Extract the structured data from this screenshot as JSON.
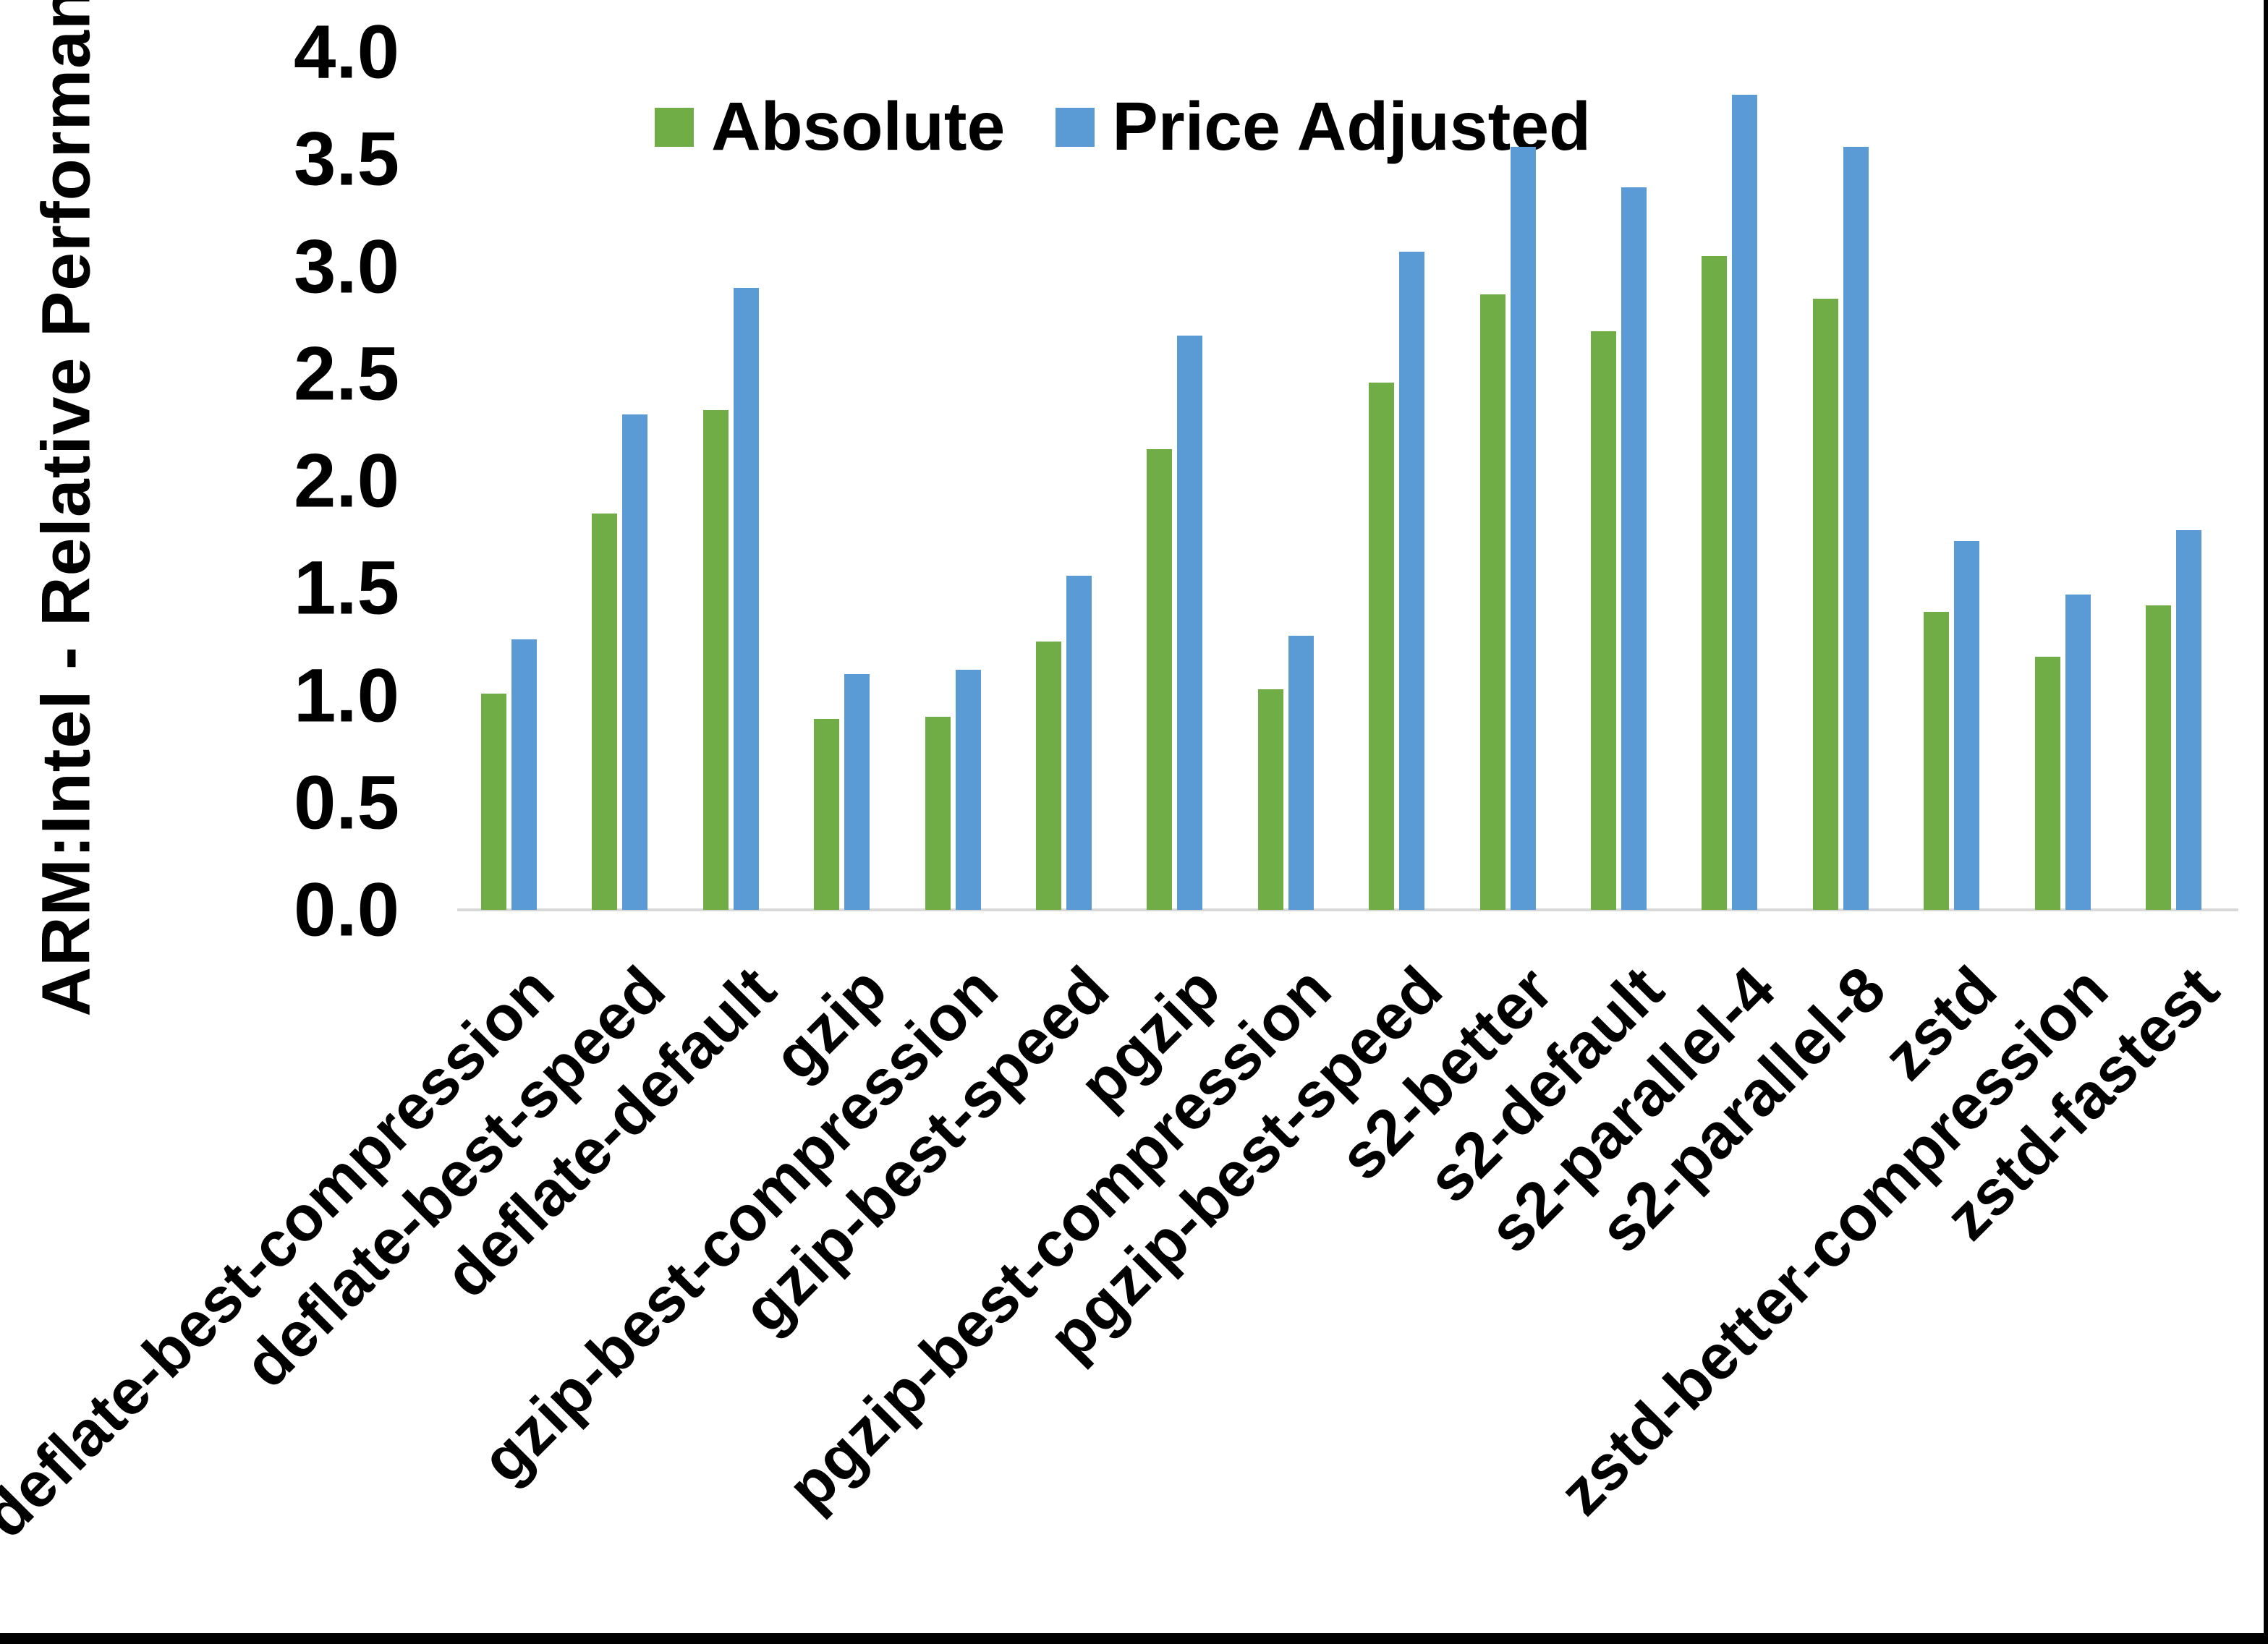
{
  "chart_data": {
    "type": "bar",
    "title": "",
    "xlabel": "",
    "ylabel": "ARM:Intel - Relative Performance",
    "ylim": [
      0.0,
      4.0
    ],
    "ytick_step": 0.5,
    "ytick_labels": [
      "0.0",
      "0.5",
      "1.0",
      "1.5",
      "2.0",
      "2.5",
      "3.0",
      "3.5",
      "4.0"
    ],
    "grid": false,
    "legend_position": "top-center",
    "axis_line_color": "#D9D9D9",
    "categories": [
      "deflate-best-compression",
      "deflate-best-speed",
      "deflate-default",
      "gzip",
      "gzip-best-compression",
      "gzip-best-speed",
      "pgzip",
      "pgzip-best-compression",
      "pgzip-best-speed",
      "s2-better",
      "s2-default",
      "s2-parallel-4",
      "s2-parallel-8",
      "zstd",
      "zstd-better-compression",
      "zstd-fastest"
    ],
    "series": [
      {
        "name": "Absolute",
        "color": "#70AD47",
        "values": [
          1.01,
          1.85,
          2.33,
          0.89,
          0.9,
          1.25,
          2.15,
          1.03,
          2.46,
          2.87,
          2.7,
          3.05,
          2.85,
          1.39,
          1.18,
          1.42
        ]
      },
      {
        "name": "Price Adjusted",
        "color": "#5B9BD5",
        "values": [
          1.26,
          2.31,
          2.9,
          1.1,
          1.12,
          1.56,
          2.68,
          1.28,
          3.07,
          3.56,
          3.37,
          3.8,
          3.56,
          1.72,
          1.47,
          1.77
        ]
      }
    ]
  },
  "frame": {
    "bottom_bar_color": "#000000",
    "right_line_color": "#000000"
  }
}
